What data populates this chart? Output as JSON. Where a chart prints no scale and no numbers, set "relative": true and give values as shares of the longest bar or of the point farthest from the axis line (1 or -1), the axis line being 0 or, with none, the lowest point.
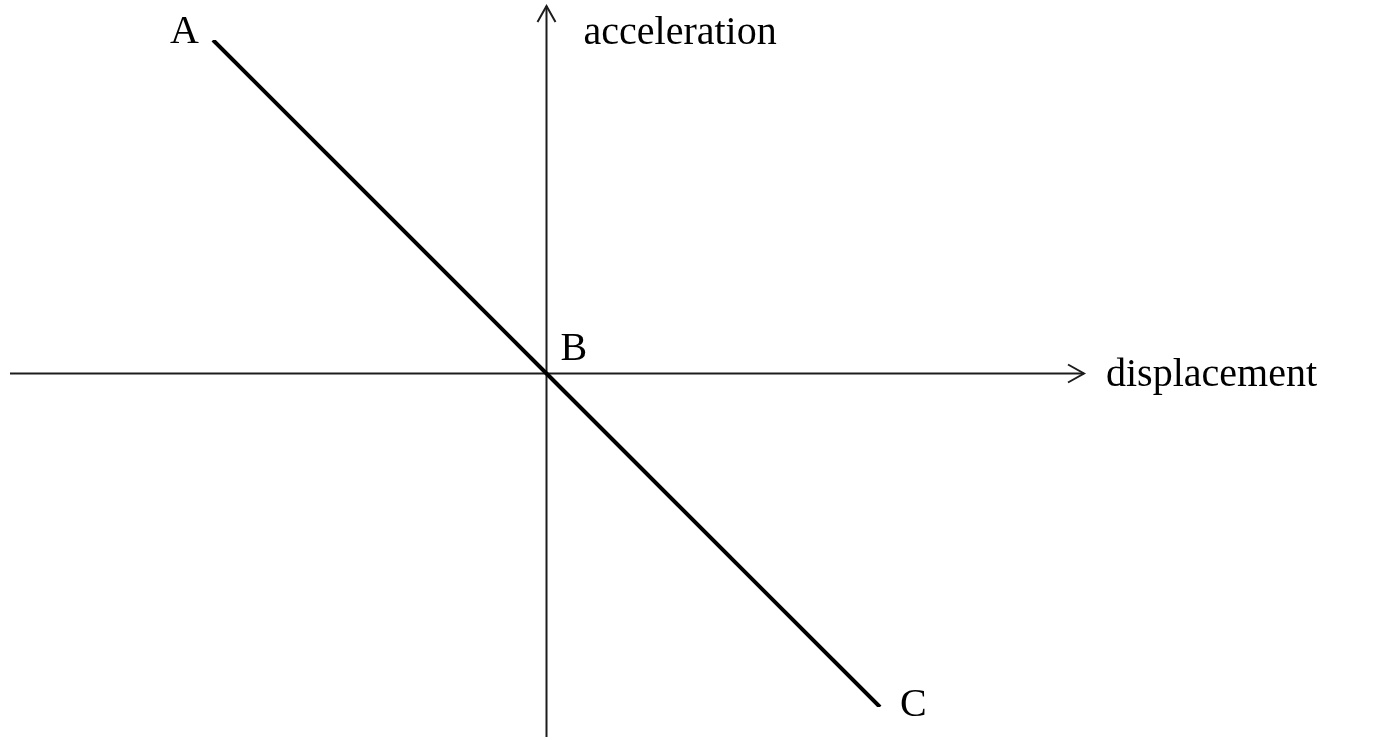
{
  "chart_data": {
    "type": "line",
    "xlabel": "displacement",
    "ylabel": "acceleration",
    "relative": true,
    "categories": [
      null,
      null,
      null
    ],
    "values": [
      1,
      0,
      -1
    ],
    "color": "#000000",
    "marker": "none",
    "line_style": "solid",
    "annotations": [
      "A",
      "B",
      "C"
    ]
  }
}
